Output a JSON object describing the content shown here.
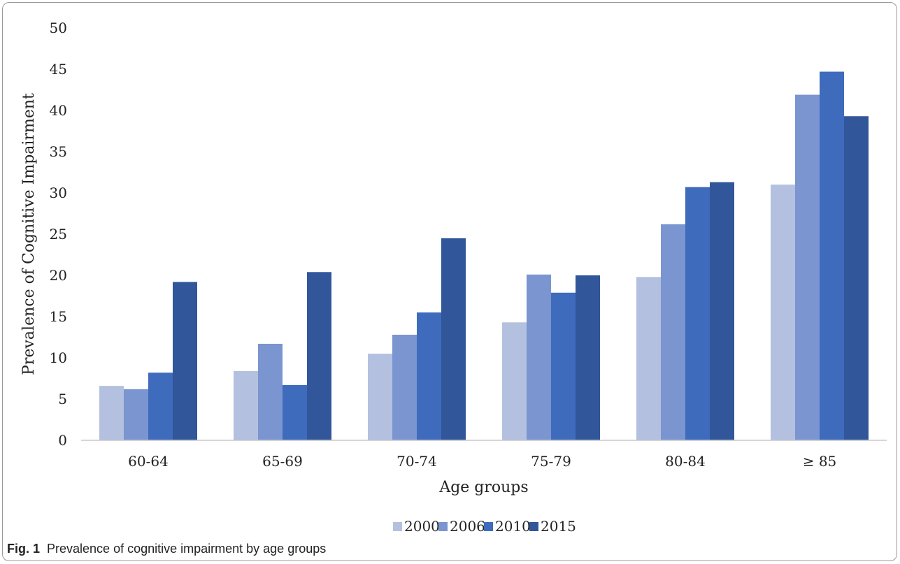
{
  "chart_data": {
    "type": "bar",
    "categories": [
      "60-64",
      "65-69",
      "70-74",
      "75-79",
      "80-84",
      "≥ 85"
    ],
    "series": [
      {
        "name": "2000",
        "values": [
          6.6,
          8.4,
          10.5,
          14.3,
          19.8,
          31.0
        ]
      },
      {
        "name": "2006",
        "values": [
          6.2,
          11.7,
          12.8,
          20.1,
          26.2,
          41.9
        ]
      },
      {
        "name": "2010",
        "values": [
          8.2,
          6.7,
          15.5,
          17.9,
          30.7,
          44.7
        ]
      },
      {
        "name": "2015",
        "values": [
          19.2,
          20.4,
          24.5,
          20.0,
          31.3,
          39.3
        ]
      }
    ],
    "colors": [
      "#b4c0df",
      "#7a95cf",
      "#3f6bbd",
      "#31569a"
    ],
    "xlabel": "Age groups",
    "ylabel": "Prevalence of Cognitive Impairment",
    "ylim": [
      0,
      50
    ],
    "yticks": [
      0,
      5,
      10,
      15,
      20,
      25,
      30,
      35,
      40,
      45,
      50
    ],
    "grid": false,
    "legend_position": "bottom"
  },
  "caption": {
    "label": "Fig. 1",
    "text": "Prevalence of cognitive impairment by age groups"
  }
}
